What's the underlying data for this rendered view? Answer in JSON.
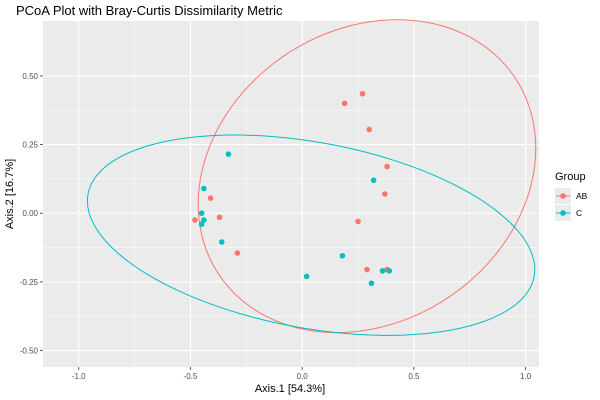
{
  "chart_data": {
    "type": "scatter",
    "title": "PCoA Plot with Bray-Curtis Dissimilarity Metric",
    "xlabel": "Axis.1   [54.3%]",
    "ylabel": "Axis.2   [16.7%]",
    "xlim": [
      -1.16,
      1.06
    ],
    "ylim": [
      -0.56,
      0.7
    ],
    "x_ticks": [
      -1.0,
      -0.5,
      0.0,
      0.5,
      1.0
    ],
    "x_tick_labels": [
      "-1.0",
      "-0.5",
      "0.0",
      "0.5",
      "1.0"
    ],
    "y_ticks": [
      -0.5,
      -0.25,
      0.0,
      0.25,
      0.5
    ],
    "y_tick_labels": [
      "-0.50",
      "-0.25",
      "0.00",
      "0.25",
      "0.50"
    ],
    "grid": true,
    "legend": {
      "title": "Group",
      "position": "right"
    },
    "series": [
      {
        "name": "AB",
        "color": "#F8766D",
        "points": [
          [
            0.19,
            0.4
          ],
          [
            0.27,
            0.435
          ],
          [
            0.3,
            0.305
          ],
          [
            0.38,
            0.17
          ],
          [
            0.37,
            0.07
          ],
          [
            0.25,
            -0.03
          ],
          [
            0.29,
            -0.205
          ],
          [
            0.38,
            -0.205
          ],
          [
            -0.48,
            -0.025
          ],
          [
            -0.41,
            0.055
          ],
          [
            -0.37,
            -0.015
          ],
          [
            -0.29,
            -0.145
          ]
        ],
        "ellipse": {
          "cx": 0.29,
          "cy": 0.135,
          "rx": 0.77,
          "ry": 0.55,
          "angle_deg": 16
        }
      },
      {
        "name": "C",
        "color": "#00BFC4",
        "points": [
          [
            -0.33,
            0.215
          ],
          [
            -0.44,
            0.09
          ],
          [
            -0.45,
            0.0
          ],
          [
            -0.45,
            -0.04
          ],
          [
            -0.44,
            -0.025
          ],
          [
            -0.36,
            -0.105
          ],
          [
            0.02,
            -0.23
          ],
          [
            0.18,
            -0.155
          ],
          [
            0.32,
            0.12
          ],
          [
            0.31,
            -0.255
          ],
          [
            0.36,
            -0.21
          ],
          [
            0.39,
            -0.21
          ]
        ],
        "ellipse": {
          "cx": 0.04,
          "cy": -0.08,
          "rx": 1.01,
          "ry": 0.34,
          "angle_deg": -8
        }
      }
    ]
  }
}
